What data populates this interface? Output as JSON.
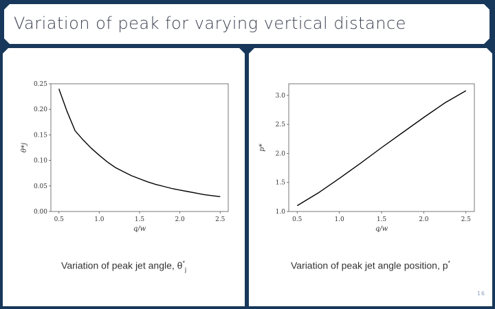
{
  "slide": {
    "title": "Variation of peak for varying vertical distance",
    "page_number": "16"
  },
  "chart_data": [
    {
      "type": "line",
      "xlabel": "q/w",
      "ylabel": "θ*j",
      "xlim": [
        0.4,
        2.6
      ],
      "ylim": [
        0.0,
        0.25
      ],
      "xticks": [
        "0.5",
        "1.0",
        "1.5",
        "2.0",
        "2.5"
      ],
      "yticks": [
        "0.00",
        "0.05",
        "0.10",
        "0.15",
        "0.20",
        "0.25"
      ],
      "grid": false,
      "caption_text": "Variation of peak jet angle, θ",
      "caption_sup": "*",
      "caption_sub": "j",
      "series": [
        {
          "x": [
            0.5,
            0.6,
            0.7,
            0.8,
            0.9,
            1.0,
            1.1,
            1.2,
            1.3,
            1.4,
            1.5,
            1.6,
            1.7,
            1.8,
            1.9,
            2.0,
            2.1,
            2.2,
            2.3,
            2.4,
            2.5
          ],
          "y": [
            0.24,
            0.196,
            0.158,
            0.14,
            0.124,
            0.11,
            0.097,
            0.086,
            0.078,
            0.07,
            0.064,
            0.058,
            0.053,
            0.049,
            0.045,
            0.042,
            0.039,
            0.036,
            0.033,
            0.031,
            0.029
          ]
        }
      ]
    },
    {
      "type": "line",
      "xlabel": "q/w",
      "ylabel": "p*",
      "xlim": [
        0.4,
        2.6
      ],
      "ylim": [
        1.0,
        3.2
      ],
      "xticks": [
        "0.5",
        "1.0",
        "1.5",
        "2.0",
        "2.5"
      ],
      "yticks": [
        "1.0",
        "1.5",
        "2.0",
        "2.5",
        "3.0"
      ],
      "grid": false,
      "caption_text": "Variation of peak jet angle position, p",
      "caption_sup": "*",
      "caption_sub": "",
      "series": [
        {
          "x": [
            0.5,
            0.75,
            1.0,
            1.25,
            1.5,
            1.75,
            2.0,
            2.25,
            2.5
          ],
          "y": [
            1.1,
            1.32,
            1.57,
            1.83,
            2.1,
            2.36,
            2.62,
            2.87,
            3.08
          ]
        }
      ]
    }
  ]
}
